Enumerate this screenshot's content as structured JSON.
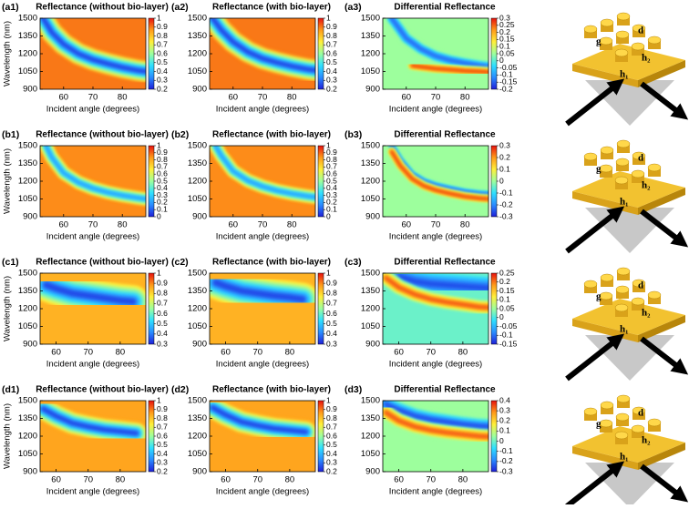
{
  "colormap": [
    "#1f1fd8",
    "#2a8cff",
    "#2fe0ff",
    "#9dff9d",
    "#ffef3a",
    "#ff9a1a",
    "#e8120e"
  ],
  "chart_data": [
    {
      "type": "heatmap",
      "panel": "(a1)",
      "title": "Reflectance (without bio-layer)",
      "xlabel": "Incident angle (degrees)",
      "ylabel": "Wavelength (nm)",
      "xlim": [
        52,
        88
      ],
      "ylim": [
        900,
        1500
      ],
      "xticks": [
        60,
        70,
        80
      ],
      "yticks": [
        900,
        1050,
        1200,
        1350,
        1500
      ],
      "clim": [
        0.2,
        1
      ],
      "cticks": [
        0.2,
        0.3,
        0.4,
        0.5,
        0.6,
        0.7,
        0.8,
        0.9,
        1
      ],
      "background": 0.9,
      "bands": [
        {
          "x": [
            53,
            56,
            60,
            65,
            70,
            75,
            80,
            85,
            88
          ],
          "y": [
            1500,
            1380,
            1280,
            1200,
            1150,
            1115,
            1085,
            1060,
            1050
          ],
          "value": 0.25,
          "width_nm": 110
        }
      ]
    },
    {
      "type": "heatmap",
      "panel": "(a2)",
      "title": "Reflectance (with bio-layer)",
      "xlabel": "Incident angle (degrees)",
      "xlim": [
        52,
        88
      ],
      "ylim": [
        900,
        1500
      ],
      "xticks": [
        60,
        70,
        80
      ],
      "yticks": [
        900,
        1050,
        1200,
        1350,
        1500
      ],
      "clim": [
        0.2,
        1
      ],
      "cticks": [
        0.2,
        0.3,
        0.4,
        0.5,
        0.6,
        0.7,
        0.8,
        0.9,
        1
      ],
      "background": 0.9,
      "bands": [
        {
          "x": [
            53,
            56,
            60,
            65,
            70,
            75,
            80,
            85,
            88
          ],
          "y": [
            1500,
            1400,
            1300,
            1215,
            1160,
            1125,
            1095,
            1070,
            1060
          ],
          "value": 0.25,
          "width_nm": 110
        }
      ]
    },
    {
      "type": "heatmap",
      "panel": "(a3)",
      "title": "Differential Reflectance",
      "xlabel": "Incident angle (degrees)",
      "xlim": [
        52,
        88
      ],
      "ylim": [
        900,
        1500
      ],
      "xticks": [
        60,
        70,
        80
      ],
      "yticks": [
        900,
        1050,
        1200,
        1350,
        1500
      ],
      "clim": [
        -0.2,
        0.3
      ],
      "cticks": [
        -0.2,
        -0.15,
        -0.1,
        -0.05,
        0,
        0.05,
        0.1,
        0.15,
        0.2,
        0.25,
        0.3
      ],
      "background": 0.05,
      "bands": [
        {
          "x": [
            55,
            60,
            65,
            70,
            75,
            80,
            85,
            88
          ],
          "y": [
            1500,
            1330,
            1240,
            1180,
            1145,
            1120,
            1100,
            1090
          ],
          "value": -0.15,
          "width_nm": 50
        },
        {
          "x": [
            62,
            65,
            70,
            75,
            80,
            85,
            88
          ],
          "y": [
            1100,
            1090,
            1075,
            1065,
            1055,
            1050,
            1045
          ],
          "value": 0.28,
          "width_nm": 40
        }
      ]
    },
    {
      "type": "heatmap",
      "panel": "(b1)",
      "title": "Reflectance (without bio-layer)",
      "xlabel": "Incident angle (degrees)",
      "ylabel": "Wavelength (nm)",
      "xlim": [
        52,
        88
      ],
      "ylim": [
        900,
        1500
      ],
      "xticks": [
        60,
        70,
        80
      ],
      "yticks": [
        900,
        1050,
        1200,
        1350,
        1500
      ],
      "clim": [
        0,
        1
      ],
      "cticks": [
        0,
        0.1,
        0.2,
        0.3,
        0.4,
        0.5,
        0.6,
        0.7,
        0.8,
        0.9,
        1
      ],
      "background": 0.85,
      "bands": [
        {
          "x": [
            54,
            56,
            60,
            65,
            70,
            75,
            80,
            85,
            88
          ],
          "y": [
            1500,
            1400,
            1270,
            1190,
            1140,
            1105,
            1080,
            1060,
            1050
          ],
          "value": 0.2,
          "width_nm": 70
        }
      ]
    },
    {
      "type": "heatmap",
      "panel": "(b2)",
      "title": "Reflectance (with bio-layer)",
      "xlabel": "Incident angle (degrees)",
      "xlim": [
        52,
        88
      ],
      "ylim": [
        900,
        1500
      ],
      "xticks": [
        60,
        70,
        80
      ],
      "yticks": [
        900,
        1050,
        1200,
        1350,
        1500
      ],
      "clim": [
        0,
        1
      ],
      "cticks": [
        0,
        0.1,
        0.2,
        0.3,
        0.4,
        0.5,
        0.6,
        0.7,
        0.8,
        0.9,
        1
      ],
      "background": 0.85,
      "bands": [
        {
          "x": [
            54,
            56,
            60,
            65,
            70,
            75,
            80,
            85,
            88
          ],
          "y": [
            1500,
            1415,
            1285,
            1205,
            1155,
            1120,
            1095,
            1075,
            1065
          ],
          "value": 0.2,
          "width_nm": 70
        }
      ]
    },
    {
      "type": "heatmap",
      "panel": "(b3)",
      "title": "Differential Reflectance",
      "xlabel": "Incident angle (degrees)",
      "xlim": [
        52,
        88
      ],
      "ylim": [
        900,
        1500
      ],
      "xticks": [
        60,
        70,
        80
      ],
      "yticks": [
        900,
        1050,
        1200,
        1350,
        1500
      ],
      "clim": [
        -0.3,
        0.3
      ],
      "cticks": [
        -0.3,
        -0.2,
        -0.1,
        0,
        0.1,
        0.2,
        0.3
      ],
      "background": 0,
      "bands": [
        {
          "x": [
            55,
            58,
            62,
            66,
            70,
            75,
            80,
            85,
            88
          ],
          "y": [
            1500,
            1380,
            1260,
            1200,
            1165,
            1135,
            1110,
            1095,
            1090
          ],
          "value": -0.25,
          "width_nm": 30
        },
        {
          "x": [
            55,
            58,
            62,
            66,
            70,
            75,
            80,
            85,
            88
          ],
          "y": [
            1450,
            1330,
            1220,
            1160,
            1125,
            1095,
            1070,
            1055,
            1050
          ],
          "value": 0.28,
          "width_nm": 35
        }
      ]
    },
    {
      "type": "heatmap",
      "panel": "(c1)",
      "title": "Reflectance (without bio-layer)",
      "xlabel": "Incident angle (degrees)",
      "ylabel": "Wavelength (nm)",
      "xlim": [
        55,
        88
      ],
      "ylim": [
        900,
        1500
      ],
      "xticks": [
        60,
        70,
        80
      ],
      "yticks": [
        900,
        1050,
        1200,
        1350,
        1500
      ],
      "clim": [
        0.3,
        1
      ],
      "cticks": [
        0.3,
        0.4,
        0.5,
        0.6,
        0.7,
        0.8,
        0.9,
        1
      ],
      "background": 0.85,
      "bands": [
        {
          "x": [
            57,
            60,
            65,
            70,
            75,
            80,
            84
          ],
          "y": [
            1400,
            1370,
            1330,
            1310,
            1290,
            1270,
            1260
          ],
          "value": 0.35,
          "width_nm": 170
        }
      ]
    },
    {
      "type": "heatmap",
      "panel": "(c2)",
      "title": "Reflectance (with bio-layer)",
      "xlabel": "Incident angle (degrees)",
      "xlim": [
        55,
        88
      ],
      "ylim": [
        900,
        1500
      ],
      "xticks": [
        60,
        70,
        80
      ],
      "yticks": [
        900,
        1050,
        1200,
        1350,
        1500
      ],
      "clim": [
        0.3,
        1
      ],
      "cticks": [
        0.3,
        0.4,
        0.5,
        0.6,
        0.7,
        0.8,
        0.9,
        1
      ],
      "background": 0.85,
      "bands": [
        {
          "x": [
            57,
            60,
            65,
            70,
            75,
            80,
            84
          ],
          "y": [
            1420,
            1390,
            1350,
            1330,
            1310,
            1295,
            1280
          ],
          "value": 0.35,
          "width_nm": 170
        }
      ]
    },
    {
      "type": "heatmap",
      "panel": "(c3)",
      "title": "Differential Reflectance",
      "xlabel": "Incident angle (degrees)",
      "xlim": [
        55,
        88
      ],
      "ylim": [
        900,
        1500
      ],
      "xticks": [
        60,
        70,
        80
      ],
      "yticks": [
        900,
        1050,
        1200,
        1350,
        1500
      ],
      "clim": [
        -0.15,
        0.25
      ],
      "cticks": [
        -0.15,
        -0.1,
        -0.05,
        0,
        0.05,
        0.1,
        0.15,
        0.2,
        0.25
      ],
      "background": 0.02,
      "bands": [
        {
          "x": [
            60,
            65,
            70,
            75,
            80,
            85,
            88
          ],
          "y": [
            1470,
            1430,
            1410,
            1400,
            1390,
            1380,
            1375
          ],
          "value": -0.12,
          "width_nm": 120
        },
        {
          "x": [
            56,
            60,
            65,
            70,
            75,
            80,
            85,
            88
          ],
          "y": [
            1460,
            1380,
            1320,
            1280,
            1255,
            1235,
            1215,
            1210
          ],
          "value": 0.22,
          "width_nm": 70
        }
      ]
    },
    {
      "type": "heatmap",
      "panel": "(d1)",
      "title": "Reflectance (without bio-layer)",
      "xlabel": "Incident angle (degrees)",
      "ylabel": "Wavelength (nm)",
      "xlim": [
        55,
        88
      ],
      "ylim": [
        900,
        1500
      ],
      "xticks": [
        60,
        70,
        80
      ],
      "yticks": [
        900,
        1050,
        1200,
        1350,
        1500
      ],
      "clim": [
        0.2,
        1
      ],
      "cticks": [
        0.2,
        0.3,
        0.4,
        0.5,
        0.6,
        0.7,
        0.8,
        0.9,
        1
      ],
      "background": 0.85,
      "bands": [
        {
          "x": [
            56,
            60,
            65,
            70,
            75,
            80,
            85
          ],
          "y": [
            1430,
            1370,
            1310,
            1280,
            1255,
            1240,
            1225
          ],
          "value": 0.25,
          "width_nm": 110
        }
      ]
    },
    {
      "type": "heatmap",
      "panel": "(d2)",
      "title": "Reflectance (with bio-layer)",
      "xlabel": "Incident angle (degrees)",
      "xlim": [
        55,
        88
      ],
      "ylim": [
        900,
        1500
      ],
      "xticks": [
        60,
        70,
        80
      ],
      "yticks": [
        900,
        1050,
        1200,
        1350,
        1500
      ],
      "clim": [
        0.2,
        1
      ],
      "cticks": [
        0.2,
        0.3,
        0.4,
        0.5,
        0.6,
        0.7,
        0.8,
        0.9,
        1
      ],
      "background": 0.85,
      "bands": [
        {
          "x": [
            56,
            60,
            65,
            70,
            75,
            80,
            85
          ],
          "y": [
            1440,
            1380,
            1320,
            1290,
            1265,
            1250,
            1235
          ],
          "value": 0.25,
          "width_nm": 110
        }
      ]
    },
    {
      "type": "heatmap",
      "panel": "(d3)",
      "title": "Differential Reflectance",
      "xlabel": "Incident angle (degrees)",
      "xlim": [
        55,
        88
      ],
      "ylim": [
        900,
        1500
      ],
      "xticks": [
        60,
        70,
        80
      ],
      "yticks": [
        900,
        1050,
        1200,
        1350,
        1500
      ],
      "clim": [
        -0.3,
        0.4
      ],
      "cticks": [
        -0.3,
        -0.2,
        -0.1,
        0,
        0.1,
        0.2,
        0.3,
        0.4
      ],
      "background": 0.05,
      "bands": [
        {
          "x": [
            56,
            60,
            65,
            70,
            75,
            80,
            85,
            88
          ],
          "y": [
            1470,
            1420,
            1370,
            1340,
            1320,
            1300,
            1285,
            1280
          ],
          "value": -0.25,
          "width_nm": 80
        },
        {
          "x": [
            56,
            60,
            65,
            70,
            75,
            80,
            85,
            88
          ],
          "y": [
            1400,
            1330,
            1280,
            1250,
            1230,
            1215,
            1200,
            1195
          ],
          "value": 0.35,
          "width_nm": 60
        }
      ]
    }
  ],
  "schematics": [
    [
      "g",
      "d",
      "h₂",
      "h₁"
    ],
    [
      "g",
      "d",
      "h₂",
      "h₁"
    ],
    [
      "g",
      "d",
      "h₂",
      "h₁"
    ],
    [
      "g",
      "d",
      "h₂",
      "h₁"
    ]
  ]
}
